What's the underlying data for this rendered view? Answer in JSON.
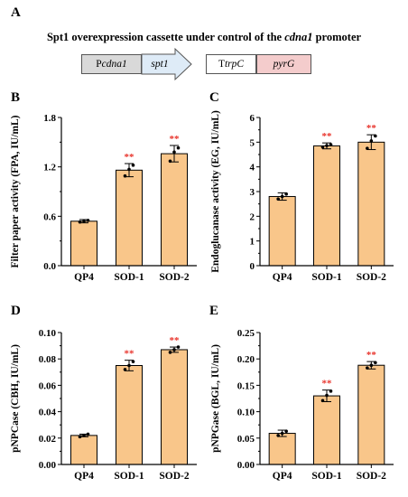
{
  "panels": {
    "A": "A",
    "B": "B",
    "C": "C",
    "D": "D",
    "E": "E"
  },
  "cassette": {
    "title_prefix": "Spt1 overexpression cassette under control of the ",
    "title_italic": "cdna1",
    "title_suffix": " promoter",
    "promoter_p": "P",
    "promoter_name": "cdna1",
    "gene": "spt1",
    "terminator_t": "T",
    "terminator_name": "trpC",
    "marker": "pyrG",
    "colors": {
      "promoter": "#d9d9d9",
      "gene": "#deebf7",
      "terminator": "#ffffff",
      "marker": "#f4cccc"
    }
  },
  "colors": {
    "bar": "#f9c68a",
    "significance": "#e8332b"
  },
  "chart_data": [
    {
      "panel": "B",
      "type": "bar",
      "categories": [
        "QP4",
        "SOD-1",
        "SOD-2"
      ],
      "values": [
        0.54,
        1.16,
        1.36
      ],
      "errors": [
        0.02,
        0.08,
        0.1
      ],
      "points": [
        [
          0.53,
          0.54,
          0.55
        ],
        [
          1.09,
          1.17,
          1.22
        ],
        [
          1.27,
          1.38,
          1.43
        ]
      ],
      "significance": [
        "",
        "**",
        "**"
      ],
      "ylabel": "Filter paper activity (FPA, IU/mL)",
      "ylim": [
        0,
        1.8
      ],
      "yticks": [
        "0.0",
        "0.6",
        "1.2",
        "1.8"
      ]
    },
    {
      "panel": "C",
      "type": "bar",
      "categories": [
        "QP4",
        "SOD-1",
        "SOD-2"
      ],
      "values": [
        2.8,
        4.85,
        5.0
      ],
      "errors": [
        0.15,
        0.12,
        0.3
      ],
      "points": [
        [
          2.7,
          2.8,
          2.9
        ],
        [
          4.8,
          4.86,
          4.9
        ],
        [
          4.75,
          5.05,
          5.25
        ]
      ],
      "significance": [
        "",
        "**",
        "**"
      ],
      "ylabel": "Endoglucanase activity (EG, IU/mL)",
      "ylim": [
        0,
        6
      ],
      "yticks": [
        "0",
        "1",
        "2",
        "3",
        "4",
        "5",
        "6"
      ]
    },
    {
      "panel": "D",
      "type": "bar",
      "categories": [
        "QP4",
        "SOD-1",
        "SOD-2"
      ],
      "values": [
        0.022,
        0.075,
        0.087
      ],
      "errors": [
        0.001,
        0.004,
        0.002
      ],
      "points": [
        [
          0.021,
          0.022,
          0.023
        ],
        [
          0.072,
          0.075,
          0.078
        ],
        [
          0.085,
          0.087,
          0.089
        ]
      ],
      "significance": [
        "",
        "**",
        "**"
      ],
      "ylabel": "pNPCase (CBH, IU/mL)",
      "ylim": [
        0,
        0.1
      ],
      "yticks": [
        "0.00",
        "0.02",
        "0.04",
        "0.06",
        "0.08",
        "0.10"
      ]
    },
    {
      "panel": "E",
      "type": "bar",
      "categories": [
        "QP4",
        "SOD-1",
        "SOD-2"
      ],
      "values": [
        0.059,
        0.13,
        0.188
      ],
      "errors": [
        0.006,
        0.011,
        0.007
      ],
      "points": [
        [
          0.055,
          0.059,
          0.063
        ],
        [
          0.121,
          0.131,
          0.139
        ],
        [
          0.183,
          0.188,
          0.193
        ]
      ],
      "significance": [
        "",
        "**",
        "**"
      ],
      "ylabel": "pNPGase (BGL, IU/mL)",
      "ylim": [
        0,
        0.25
      ],
      "yticks": [
        "0.00",
        "0.05",
        "0.10",
        "0.15",
        "0.20",
        "0.25"
      ]
    }
  ]
}
